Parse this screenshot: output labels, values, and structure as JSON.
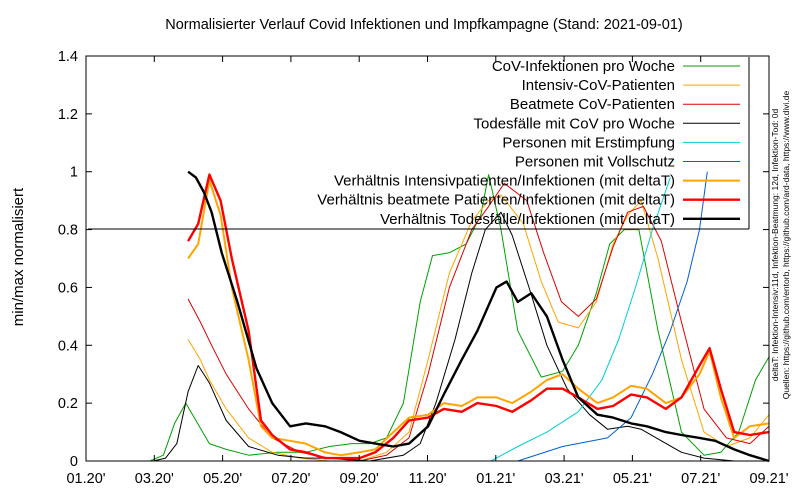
{
  "colors": {
    "cov_infektionen": "#00a000",
    "intensiv": "#ffa500",
    "beatmete": "#e00000",
    "todesfaelle": "#000000",
    "erstimpfung": "#00d0d0",
    "vollschutz": "#0060d0",
    "ratio_intensiv": "#ffa500",
    "ratio_beatmete": "#ff0000",
    "ratio_tod": "#000000"
  },
  "chart_data": {
    "type": "line",
    "title": "Normalisierter Verlauf Covid Infektionen und Impfkampagne (Stand: 2021-09-01)",
    "xlabel": "",
    "ylabel": "min/max normalisiert",
    "xlim": [
      "2020-01-01",
      "2021-09-01"
    ],
    "ylim": [
      0,
      1.4
    ],
    "x_ticks": [
      "01.20'",
      "03.20'",
      "05.20'",
      "07.20'",
      "09.20'",
      "11.20'",
      "01.21'",
      "03.21'",
      "05.21'",
      "07.21'",
      "09.21'"
    ],
    "y_ticks": [
      "0",
      "0.2",
      "0.4",
      "0.6",
      "0.8",
      "1",
      "1.2",
      "1.4"
    ],
    "legend_position": "top-right",
    "grid": false,
    "side_note_lines": [
      "deltaT: Infektion-Intensiv:11d, Infektion-Beatmung: 12d, Infektion-Tod: 0d",
      "Quellen: https://github.com/entorb, https://github.com/ard-data, https://www.divi.de"
    ],
    "series": [
      {
        "name": "CoV-Infektionen pro Woche",
        "color_key": "cov_infektionen",
        "width": 1,
        "x": [
          "2020-02-27",
          "2020-03-10",
          "2020-03-20",
          "2020-03-30",
          "2020-04-08",
          "2020-04-20",
          "2020-05-05",
          "2020-05-25",
          "2020-06-20",
          "2020-07-15",
          "2020-08-05",
          "2020-08-25",
          "2020-09-10",
          "2020-09-25",
          "2020-10-10",
          "2020-10-25",
          "2020-11-05",
          "2020-11-20",
          "2020-12-05",
          "2020-12-18",
          "2020-12-25",
          "2021-01-05",
          "2021-01-20",
          "2021-02-10",
          "2021-03-01",
          "2021-03-15",
          "2021-03-31",
          "2021-04-12",
          "2021-04-25",
          "2021-05-08",
          "2021-05-25",
          "2021-06-15",
          "2021-07-05",
          "2021-07-20",
          "2021-08-05",
          "2021-08-20",
          "2021-09-01"
        ],
        "y": [
          0.0,
          0.02,
          0.13,
          0.2,
          0.14,
          0.06,
          0.04,
          0.02,
          0.03,
          0.03,
          0.05,
          0.06,
          0.06,
          0.08,
          0.2,
          0.55,
          0.71,
          0.72,
          0.75,
          0.85,
          0.99,
          0.8,
          0.45,
          0.29,
          0.31,
          0.4,
          0.58,
          0.75,
          0.8,
          0.8,
          0.45,
          0.1,
          0.02,
          0.03,
          0.1,
          0.28,
          0.36
        ]
      },
      {
        "name": "Intensiv-CoV-Patienten",
        "color_key": "intensiv",
        "width": 1,
        "x": [
          "2020-04-01",
          "2020-04-12",
          "2020-04-20",
          "2020-05-05",
          "2020-05-25",
          "2020-06-15",
          "2020-07-10",
          "2020-08-05",
          "2020-09-01",
          "2020-09-25",
          "2020-10-15",
          "2020-11-01",
          "2020-11-20",
          "2020-12-10",
          "2020-12-25",
          "2021-01-05",
          "2021-01-25",
          "2021-02-10",
          "2021-02-25",
          "2021-03-15",
          "2021-03-31",
          "2021-04-15",
          "2021-04-28",
          "2021-05-10",
          "2021-05-25",
          "2021-06-15",
          "2021-07-05",
          "2021-07-25",
          "2021-08-15",
          "2021-09-01"
        ],
        "y": [
          0.42,
          0.35,
          0.28,
          0.18,
          0.08,
          0.03,
          0.01,
          0.0,
          0.0,
          0.03,
          0.1,
          0.35,
          0.65,
          0.83,
          0.9,
          0.92,
          0.82,
          0.62,
          0.48,
          0.46,
          0.55,
          0.75,
          0.85,
          0.9,
          0.7,
          0.35,
          0.1,
          0.05,
          0.08,
          0.16
        ]
      },
      {
        "name": "Beatmete CoV-Patienten",
        "color_key": "beatmete",
        "width": 1,
        "x": [
          "2020-04-01",
          "2020-04-12",
          "2020-04-22",
          "2020-05-05",
          "2020-05-25",
          "2020-06-15",
          "2020-07-10",
          "2020-08-05",
          "2020-09-01",
          "2020-09-25",
          "2020-10-15",
          "2020-11-01",
          "2020-11-20",
          "2020-12-10",
          "2020-12-25",
          "2021-01-08",
          "2021-01-28",
          "2021-02-12",
          "2021-02-28",
          "2021-03-15",
          "2021-03-31",
          "2021-04-15",
          "2021-04-28",
          "2021-05-12",
          "2021-05-28",
          "2021-06-15",
          "2021-07-05",
          "2021-07-25",
          "2021-08-15",
          "2021-09-01"
        ],
        "y": [
          0.56,
          0.48,
          0.4,
          0.3,
          0.18,
          0.08,
          0.03,
          0.01,
          0.0,
          0.02,
          0.08,
          0.3,
          0.6,
          0.8,
          0.88,
          0.96,
          0.9,
          0.72,
          0.55,
          0.5,
          0.56,
          0.74,
          0.86,
          0.88,
          0.76,
          0.48,
          0.18,
          0.08,
          0.06,
          0.12
        ]
      },
      {
        "name": "Todesfälle mit CoV pro Woche",
        "color_key": "todesfaelle",
        "width": 1,
        "x": [
          "2020-03-01",
          "2020-03-12",
          "2020-03-22",
          "2020-04-01",
          "2020-04-10",
          "2020-04-20",
          "2020-05-05",
          "2020-05-25",
          "2020-06-20",
          "2020-07-15",
          "2020-08-10",
          "2020-09-10",
          "2020-10-10",
          "2020-10-25",
          "2020-11-08",
          "2020-11-25",
          "2020-12-10",
          "2020-12-22",
          "2021-01-05",
          "2021-01-15",
          "2021-01-30",
          "2021-02-15",
          "2021-03-05",
          "2021-03-25",
          "2021-04-10",
          "2021-04-28",
          "2021-05-10",
          "2021-05-28",
          "2021-06-15",
          "2021-07-05",
          "2021-08-01",
          "2021-09-01"
        ],
        "y": [
          0.0,
          0.01,
          0.06,
          0.24,
          0.33,
          0.27,
          0.14,
          0.05,
          0.02,
          0.01,
          0.01,
          0.0,
          0.02,
          0.06,
          0.2,
          0.42,
          0.65,
          0.8,
          0.86,
          0.78,
          0.6,
          0.4,
          0.25,
          0.16,
          0.11,
          0.12,
          0.11,
          0.07,
          0.03,
          0.01,
          0.0,
          0.0
        ]
      },
      {
        "name": "Personen mit Erstimpfung",
        "color_key": "erstimpfung",
        "width": 1,
        "x": [
          "2020-12-27",
          "2021-01-20",
          "2021-02-15",
          "2021-03-15",
          "2021-04-05",
          "2021-04-20",
          "2021-05-05",
          "2021-05-20",
          "2021-06-05"
        ],
        "y": [
          0.0,
          0.05,
          0.1,
          0.17,
          0.28,
          0.42,
          0.6,
          0.8,
          0.98
        ]
      },
      {
        "name": "Personen mit Vollschutz",
        "color_key": "vollschutz",
        "width": 1,
        "x": [
          "2021-01-20",
          "2021-03-01",
          "2021-04-10",
          "2021-05-01",
          "2021-05-20",
          "2021-06-05",
          "2021-06-20",
          "2021-07-01",
          "2021-07-08"
        ],
        "y": [
          0.0,
          0.05,
          0.08,
          0.15,
          0.3,
          0.45,
          0.62,
          0.8,
          1.0
        ]
      },
      {
        "name": "Verhältnis Intensivpatienten/Infektionen (mit deltaT)",
        "color_key": "ratio_intensiv",
        "width": 2,
        "x": [
          "2020-04-01",
          "2020-04-10",
          "2020-04-20",
          "2020-04-30",
          "2020-05-10",
          "2020-05-25",
          "2020-06-05",
          "2020-06-15",
          "2020-07-01",
          "2020-07-15",
          "2020-08-01",
          "2020-08-15",
          "2020-09-01",
          "2020-09-15",
          "2020-10-01",
          "2020-10-15",
          "2020-11-01",
          "2020-11-15",
          "2020-12-01",
          "2020-12-15",
          "2021-01-01",
          "2021-01-15",
          "2021-02-01",
          "2021-02-15",
          "2021-03-01",
          "2021-03-15",
          "2021-04-01",
          "2021-04-15",
          "2021-05-01",
          "2021-05-15",
          "2021-06-01",
          "2021-06-15",
          "2021-07-01",
          "2021-07-10",
          "2021-07-20",
          "2021-08-01",
          "2021-08-15",
          "2021-09-01"
        ],
        "y": [
          0.7,
          0.75,
          0.97,
          0.85,
          0.6,
          0.35,
          0.12,
          0.08,
          0.07,
          0.06,
          0.03,
          0.02,
          0.03,
          0.04,
          0.1,
          0.15,
          0.16,
          0.2,
          0.19,
          0.22,
          0.22,
          0.2,
          0.24,
          0.28,
          0.3,
          0.25,
          0.2,
          0.22,
          0.26,
          0.25,
          0.2,
          0.22,
          0.3,
          0.38,
          0.22,
          0.08,
          0.12,
          0.13
        ]
      },
      {
        "name": "Verhältnis beatmete Patienten/Infektionen (mit deltaT)",
        "color_key": "ratio_beatmete",
        "width": 2.4,
        "x": [
          "2020-04-01",
          "2020-04-10",
          "2020-04-20",
          "2020-04-30",
          "2020-05-10",
          "2020-05-25",
          "2020-06-05",
          "2020-06-15",
          "2020-07-01",
          "2020-07-15",
          "2020-08-01",
          "2020-08-15",
          "2020-09-01",
          "2020-09-15",
          "2020-10-01",
          "2020-10-15",
          "2020-11-01",
          "2020-11-15",
          "2020-12-01",
          "2020-12-15",
          "2021-01-01",
          "2021-01-15",
          "2021-02-01",
          "2021-02-15",
          "2021-03-01",
          "2021-03-15",
          "2021-04-01",
          "2021-04-15",
          "2021-05-01",
          "2021-05-15",
          "2021-06-01",
          "2021-06-15",
          "2021-07-01",
          "2021-07-10",
          "2021-07-20",
          "2021-08-01",
          "2021-08-15",
          "2021-09-01"
        ],
        "y": [
          0.76,
          0.82,
          0.99,
          0.9,
          0.7,
          0.45,
          0.14,
          0.09,
          0.04,
          0.03,
          0.01,
          0.01,
          0.01,
          0.03,
          0.08,
          0.14,
          0.15,
          0.18,
          0.17,
          0.2,
          0.19,
          0.17,
          0.21,
          0.25,
          0.25,
          0.22,
          0.18,
          0.19,
          0.23,
          0.22,
          0.18,
          0.22,
          0.33,
          0.39,
          0.25,
          0.1,
          0.09,
          0.1
        ]
      },
      {
        "name": "Verhältnis Todesfälle/Infektionen (mit deltaT)",
        "color_key": "ratio_tod",
        "width": 2.4,
        "x": [
          "2020-04-01",
          "2020-04-08",
          "2020-04-15",
          "2020-04-22",
          "2020-05-01",
          "2020-05-15",
          "2020-06-01",
          "2020-06-15",
          "2020-07-01",
          "2020-07-15",
          "2020-08-01",
          "2020-08-15",
          "2020-09-01",
          "2020-09-15",
          "2020-10-01",
          "2020-10-15",
          "2020-11-01",
          "2020-11-15",
          "2020-12-01",
          "2020-12-15",
          "2021-01-01",
          "2021-01-10",
          "2021-01-20",
          "2021-02-01",
          "2021-02-15",
          "2021-03-01",
          "2021-03-15",
          "2021-04-01",
          "2021-04-15",
          "2021-05-01",
          "2021-05-15",
          "2021-06-01",
          "2021-06-15",
          "2021-07-01",
          "2021-07-15",
          "2021-08-01",
          "2021-08-15",
          "2021-09-01"
        ],
        "y": [
          1.0,
          0.98,
          0.93,
          0.86,
          0.72,
          0.55,
          0.32,
          0.2,
          0.12,
          0.13,
          0.12,
          0.1,
          0.07,
          0.06,
          0.05,
          0.06,
          0.12,
          0.23,
          0.35,
          0.45,
          0.6,
          0.62,
          0.55,
          0.58,
          0.5,
          0.35,
          0.22,
          0.16,
          0.15,
          0.13,
          0.12,
          0.1,
          0.09,
          0.08,
          0.07,
          0.04,
          0.02,
          0.0
        ]
      }
    ]
  }
}
